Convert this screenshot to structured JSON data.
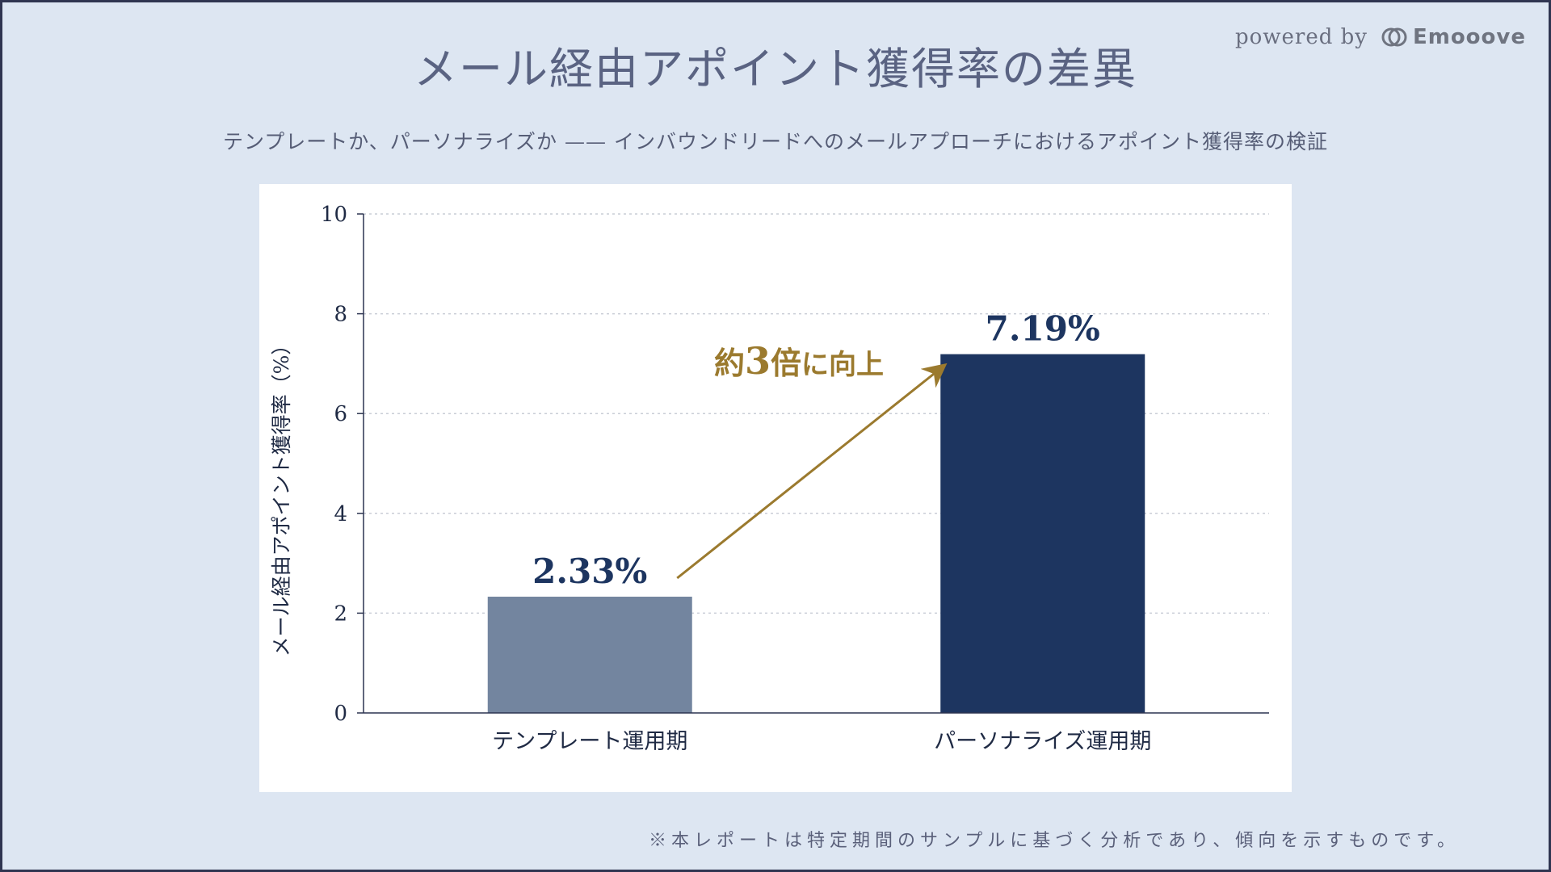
{
  "header": {
    "title": "メール経由アポイント獲得率の差異",
    "subtitle": "テンプレートか、パーソナライズか —— インバウンドリードへのメールアプローチにおけるアポイント獲得率の検証",
    "powered_by": "powered by",
    "brand": "Emooove"
  },
  "footer": {
    "note": "※本レポートは特定期間のサンプルに基づく分析であり、傾向を示すものです。"
  },
  "chart_data": {
    "type": "bar",
    "categories": [
      "テンプレート運用期",
      "パーソナライズ運用期"
    ],
    "values": [
      2.33,
      7.19
    ],
    "value_labels": [
      "2.33%",
      "7.19%"
    ],
    "ylabel": "メール経由アポイント獲得率（%）",
    "ylim": [
      0,
      10
    ],
    "yticks": [
      0,
      2,
      4,
      6,
      8,
      10
    ],
    "grid": true,
    "bar_colors": [
      "#73859f",
      "#1d3560"
    ],
    "annotation": {
      "text_parts": [
        "約",
        "3",
        "倍",
        "に向上"
      ],
      "color": "#9b7a2e"
    }
  }
}
